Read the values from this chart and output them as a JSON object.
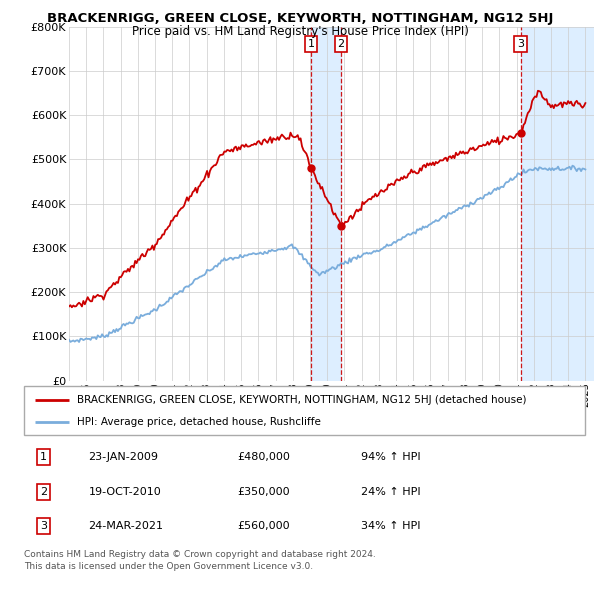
{
  "title": "BRACKENRIGG, GREEN CLOSE, KEYWORTH, NOTTINGHAM, NG12 5HJ",
  "subtitle": "Price paid vs. HM Land Registry's House Price Index (HPI)",
  "legend_red": "BRACKENRIGG, GREEN CLOSE, KEYWORTH, NOTTINGHAM, NG12 5HJ (detached house)",
  "legend_blue": "HPI: Average price, detached house, Rushcliffe",
  "footer1": "Contains HM Land Registry data © Crown copyright and database right 2024.",
  "footer2": "This data is licensed under the Open Government Licence v3.0.",
  "transactions": [
    {
      "num": 1,
      "date": "23-JAN-2009",
      "price": "£480,000",
      "pct": "94% ↑ HPI",
      "year_x": 2009.06,
      "price_val": 480000
    },
    {
      "num": 2,
      "date": "19-OCT-2010",
      "price": "£350,000",
      "pct": "24% ↑ HPI",
      "year_x": 2010.8,
      "price_val": 350000
    },
    {
      "num": 3,
      "date": "24-MAR-2021",
      "price": "£560,000",
      "pct": "34% ↑ HPI",
      "year_x": 2021.23,
      "price_val": 560000
    }
  ],
  "red_line_color": "#cc0000",
  "blue_line_color": "#7aaddc",
  "shade_color": "#ddeeff",
  "dashed_line_color": "#cc0000",
  "dot_color": "#cc0000",
  "ylim": [
    0,
    800000
  ],
  "xmin": 1995,
  "xmax": 2025,
  "background_color": "#ffffff",
  "grid_color": "#cccccc"
}
